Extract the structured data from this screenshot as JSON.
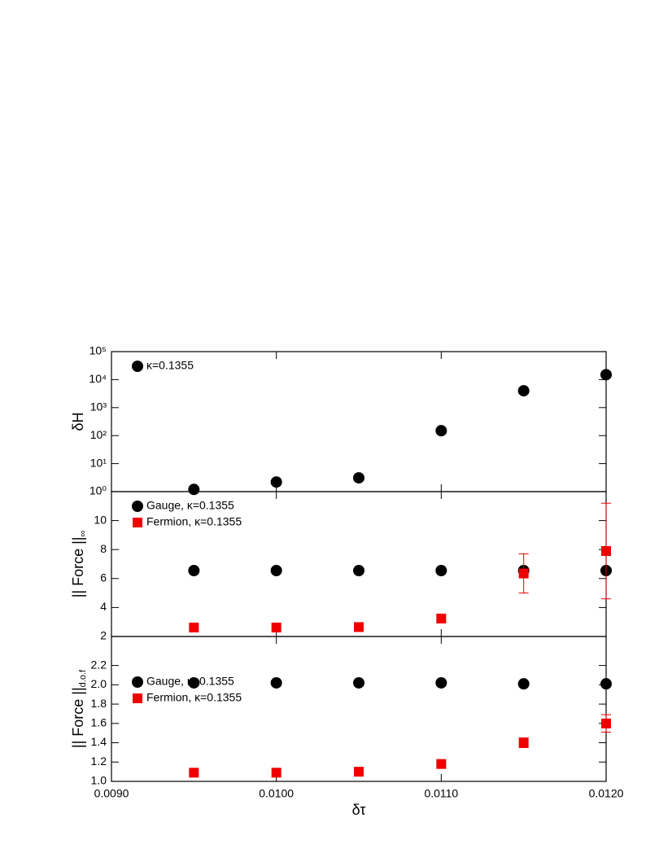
{
  "chart_data": [
    {
      "type": "scatter",
      "y_label": "δH",
      "log_y": true,
      "x": [
        0.0095,
        0.01,
        0.0105,
        0.011,
        0.0115,
        0.012
      ],
      "xlim": [
        0.009,
        0.012
      ],
      "ylim": [
        1,
        100000
      ],
      "yticks": [
        {
          "value": 1,
          "label": "10⁰"
        },
        {
          "value": 10,
          "label": "10¹"
        },
        {
          "value": 100,
          "label": "10²"
        },
        {
          "value": 1000,
          "label": "10³"
        },
        {
          "value": 10000,
          "label": "10⁴"
        },
        {
          "value": 100000,
          "label": "10⁵"
        }
      ],
      "legend": "upper left",
      "series": [
        {
          "name": "κ=0.1355",
          "color": "#000000",
          "marker": "circle",
          "values": [
            1.2,
            2.2,
            3.1,
            150,
            4000,
            15000
          ]
        }
      ]
    },
    {
      "type": "scatter",
      "y_label": "|| Force ||",
      "y_label_subscript": "∞",
      "log_y": false,
      "x": [
        0.0095,
        0.01,
        0.0105,
        0.011,
        0.0115,
        0.012
      ],
      "xlim": [
        0.009,
        0.012
      ],
      "ylim": [
        2,
        12
      ],
      "yticks": [
        2,
        4,
        6,
        8,
        10
      ],
      "legend": "upper left",
      "series": [
        {
          "name": "Gauge, κ=0.1355",
          "color": "#000000",
          "marker": "circle",
          "values": [
            6.55,
            6.55,
            6.55,
            6.55,
            6.55,
            6.55
          ]
        },
        {
          "name": "Fermion, κ=0.1355",
          "color": "#ee0000",
          "marker": "square",
          "values": [
            2.62,
            2.62,
            2.65,
            3.24,
            6.35,
            7.9
          ],
          "errors": [
            0.12,
            0.12,
            0.12,
            0.15,
            1.35,
            3.3
          ]
        }
      ]
    },
    {
      "type": "scatter",
      "y_label": "|| Force ||",
      "y_label_subscript": "d.o.f",
      "log_y": false,
      "x_label": "δτ",
      "x": [
        0.0095,
        0.01,
        0.0105,
        0.011,
        0.0115,
        0.012
      ],
      "xlim": [
        0.009,
        0.012
      ],
      "xticks": [
        {
          "value": 0.009,
          "label": "0.0090"
        },
        {
          "value": 0.01,
          "label": "0.0100"
        },
        {
          "value": 0.011,
          "label": "0.0110"
        },
        {
          "value": 0.012,
          "label": "0.0120"
        }
      ],
      "ylim": [
        1,
        2.5
      ],
      "yticks": [
        {
          "value": 1,
          "label": "1.0"
        },
        1.2,
        1.4,
        1.6,
        1.8,
        {
          "value": 2,
          "label": "2.0"
        },
        2.2
      ],
      "legend": "center left",
      "series": [
        {
          "name": "Gauge, κ=0.1355",
          "color": "#000000",
          "marker": "circle",
          "values": [
            2.02,
            2.02,
            2.02,
            2.02,
            2.01,
            2.01
          ]
        },
        {
          "name": "Fermion, κ=0.1355",
          "color": "#ee0000",
          "marker": "square",
          "values": [
            1.09,
            1.09,
            1.1,
            1.18,
            1.4,
            1.6
          ],
          "errors": [
            0.02,
            0.02,
            0.02,
            0.02,
            0.05,
            0.09
          ]
        }
      ]
    }
  ]
}
